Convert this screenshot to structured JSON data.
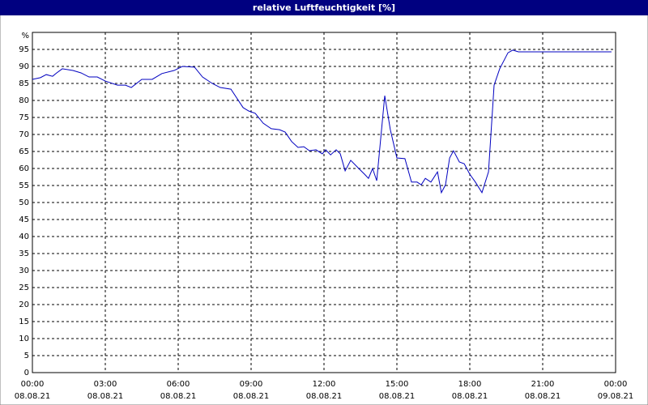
{
  "chart_data": {
    "type": "line",
    "title": "relative Luftfeuchtigkeit [%]",
    "y_label": "%",
    "x": [
      0,
      0.33,
      0.57,
      0.83,
      1.0,
      1.23,
      1.67,
      2.0,
      2.33,
      2.67,
      3.0,
      3.5,
      3.83,
      4.07,
      4.5,
      4.93,
      5.33,
      5.83,
      6.17,
      6.67,
      7.0,
      7.4,
      7.73,
      8.17,
      8.67,
      8.9,
      9.17,
      9.5,
      9.83,
      10.17,
      10.4,
      10.67,
      10.93,
      11.17,
      11.4,
      11.67,
      11.93,
      12.07,
      12.27,
      12.5,
      12.67,
      12.87,
      13.1,
      13.43,
      13.67,
      13.83,
      14.0,
      14.17,
      14.5,
      14.73,
      15.0,
      15.33,
      15.6,
      15.83,
      16.0,
      16.17,
      16.4,
      16.67,
      16.83,
      17.0,
      17.17,
      17.33,
      17.57,
      17.77,
      18.0,
      18.23,
      18.5,
      18.77,
      19.0,
      19.23,
      19.57,
      19.77,
      20.0,
      22.0,
      23.83
    ],
    "series": [
      {
        "name": "relative Luftfeuchtigkeit",
        "color": "#0000c0",
        "values": [
          86.2,
          86.7,
          87.6,
          87.1,
          88.1,
          89.3,
          88.8,
          88.1,
          86.9,
          86.9,
          85.7,
          84.5,
          84.5,
          83.8,
          86.2,
          86.2,
          87.9,
          88.8,
          90,
          89.8,
          86.9,
          85,
          83.8,
          83.3,
          77.9,
          76.9,
          76.2,
          73.3,
          71.7,
          71.4,
          70.7,
          67.9,
          66.2,
          66.4,
          65.2,
          65.5,
          64.3,
          65.5,
          64,
          65.5,
          64.3,
          59.3,
          62.4,
          60,
          58.3,
          57.1,
          60,
          56.4,
          81.4,
          71.4,
          63.1,
          62.9,
          56,
          56,
          55.2,
          57.1,
          56,
          59,
          52.9,
          55.2,
          63.1,
          65.2,
          61.9,
          61.4,
          58.3,
          56,
          52.9,
          59,
          84.5,
          89.3,
          94,
          94.8,
          94.3,
          94.3,
          94.3
        ]
      }
    ],
    "xlim": [
      0,
      24
    ],
    "xticks": [
      {
        "value": 0,
        "label": "00:00",
        "sublabel": "08.08.21"
      },
      {
        "value": 3,
        "label": "03:00",
        "sublabel": "08.08.21"
      },
      {
        "value": 6,
        "label": "06:00",
        "sublabel": "08.08.21"
      },
      {
        "value": 9,
        "label": "09:00",
        "sublabel": "08.08.21"
      },
      {
        "value": 12,
        "label": "12:00",
        "sublabel": "08.08.21"
      },
      {
        "value": 15,
        "label": "15:00",
        "sublabel": "08.08.21"
      },
      {
        "value": 18,
        "label": "18:00",
        "sublabel": "08.08.21"
      },
      {
        "value": 21,
        "label": "21:00",
        "sublabel": "08.08.21"
      },
      {
        "value": 24,
        "label": "00:00",
        "sublabel": "09.08.21"
      }
    ],
    "ylim": [
      0,
      100
    ],
    "yticks": [
      0,
      5,
      10,
      15,
      20,
      25,
      30,
      35,
      40,
      45,
      50,
      55,
      60,
      65,
      70,
      75,
      80,
      85,
      90,
      95
    ],
    "grid": true
  }
}
